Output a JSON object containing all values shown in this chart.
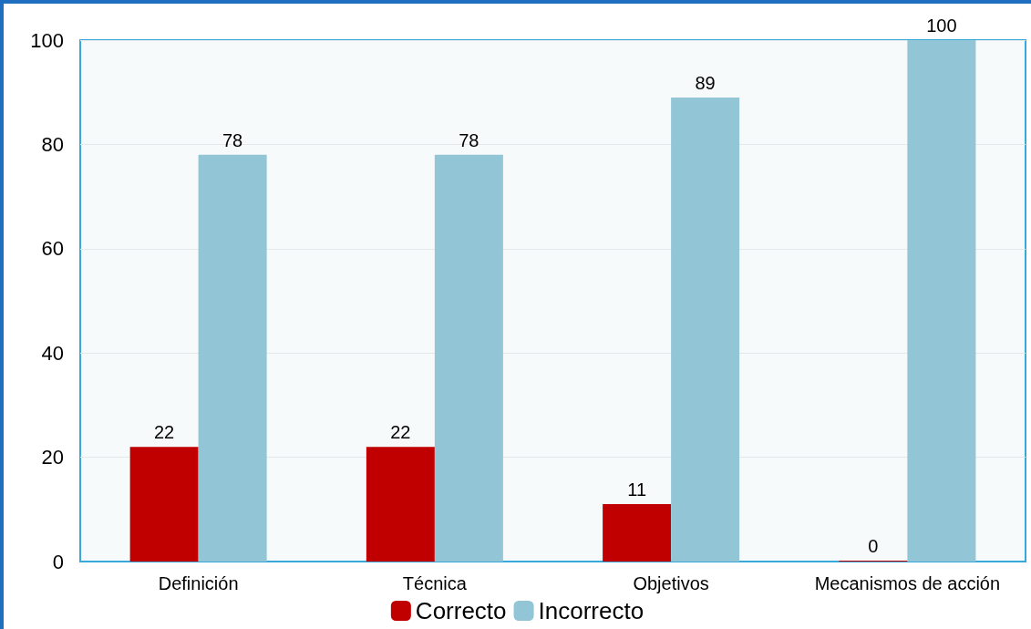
{
  "chart_data": {
    "type": "bar",
    "categories": [
      "Definición",
      "Técnica",
      "Objetivos",
      "Mecanismos de acción"
    ],
    "series": [
      {
        "name": "Correcto",
        "color": "#c00000",
        "values": [
          22,
          22,
          11,
          0
        ]
      },
      {
        "name": "Incorrecto",
        "color": "#92c5d5",
        "values": [
          78,
          78,
          89,
          100
        ]
      }
    ],
    "ylim": [
      0,
      100
    ],
    "yticks": [
      0,
      20,
      40,
      60,
      80,
      100
    ],
    "grid": "y",
    "data_labels": true,
    "legend": "bottom"
  }
}
